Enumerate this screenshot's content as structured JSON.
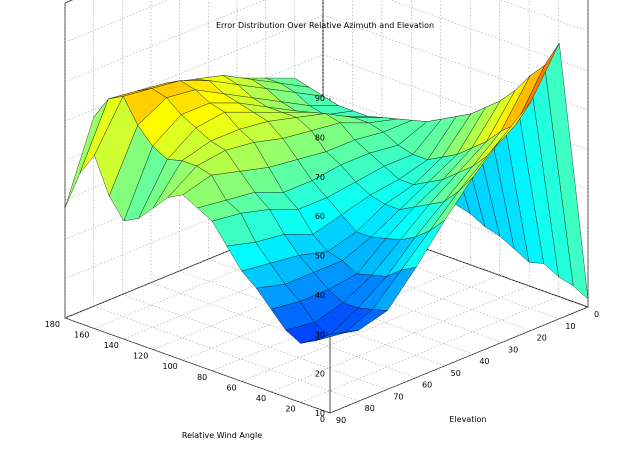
{
  "chart_data": {
    "type": "surface",
    "title": "Error Distribution Over Relative Azimuth and Elevation",
    "xlabel": "Relative Wind Angle",
    "ylabel": "Elevation",
    "zlabel": "",
    "xlim": [
      0,
      180
    ],
    "ylim": [
      0,
      90
    ],
    "zlim": [
      10,
      90
    ],
    "x_ticks": [
      0,
      20,
      40,
      60,
      80,
      100,
      120,
      140,
      160,
      180
    ],
    "y_ticks": [
      0,
      10,
      20,
      30,
      40,
      50,
      60,
      70,
      80,
      90
    ],
    "z_ticks": [
      10,
      20,
      30,
      40,
      50,
      60,
      70,
      80,
      90
    ],
    "colormap": "jet",
    "grid": true,
    "relative_wind_angle": [
      0,
      10,
      20,
      30,
      40,
      50,
      60,
      70,
      80,
      90,
      100,
      110,
      120,
      130,
      140,
      150,
      160,
      170,
      180
    ],
    "elevation": [
      0,
      10,
      20,
      30,
      40,
      50,
      60,
      70,
      80,
      90
    ],
    "error": [
      [
        12,
        80,
        68,
        62,
        55,
        47,
        38,
        30,
        28,
        30
      ],
      [
        14,
        73,
        61,
        56,
        50,
        43,
        36,
        29,
        26,
        27
      ],
      [
        15,
        69,
        58,
        52,
        46,
        40,
        33,
        28,
        24,
        25
      ],
      [
        17,
        64,
        54,
        49,
        44,
        38,
        32,
        28,
        26,
        27
      ],
      [
        16,
        60,
        51,
        46,
        42,
        37,
        31,
        30,
        30,
        31
      ],
      [
        18,
        57,
        48,
        44,
        40,
        36,
        33,
        33,
        33,
        35
      ],
      [
        20,
        54,
        46,
        42,
        40,
        36,
        34,
        36,
        37,
        38
      ],
      [
        21,
        52,
        44,
        42,
        41,
        39,
        37,
        40,
        41,
        43
      ],
      [
        23,
        50,
        44,
        44,
        43,
        42,
        42,
        45,
        47,
        48
      ],
      [
        24,
        48,
        45,
        46,
        46,
        45,
        45,
        48,
        49,
        50
      ],
      [
        25,
        47,
        47,
        48,
        48,
        49,
        50,
        52,
        54,
        52
      ],
      [
        25,
        46,
        48,
        51,
        52,
        53,
        55,
        56,
        55,
        50
      ],
      [
        26,
        45,
        48,
        52,
        54,
        56,
        57,
        57,
        55,
        46
      ],
      [
        26,
        44,
        47,
        51,
        54,
        57,
        60,
        59,
        54,
        42
      ],
      [
        26,
        44,
        46,
        50,
        54,
        58,
        61,
        61,
        56,
        40
      ],
      [
        26,
        44,
        47,
        51,
        55,
        59,
        63,
        64,
        60,
        45
      ],
      [
        27,
        45,
        49,
        53,
        57,
        61,
        64,
        65,
        66,
        54
      ],
      [
        27,
        46,
        50,
        54,
        58,
        60,
        62,
        63,
        64,
        48
      ],
      [
        28,
        47,
        50,
        53,
        55,
        57,
        58,
        58,
        58,
        38
      ]
    ]
  }
}
